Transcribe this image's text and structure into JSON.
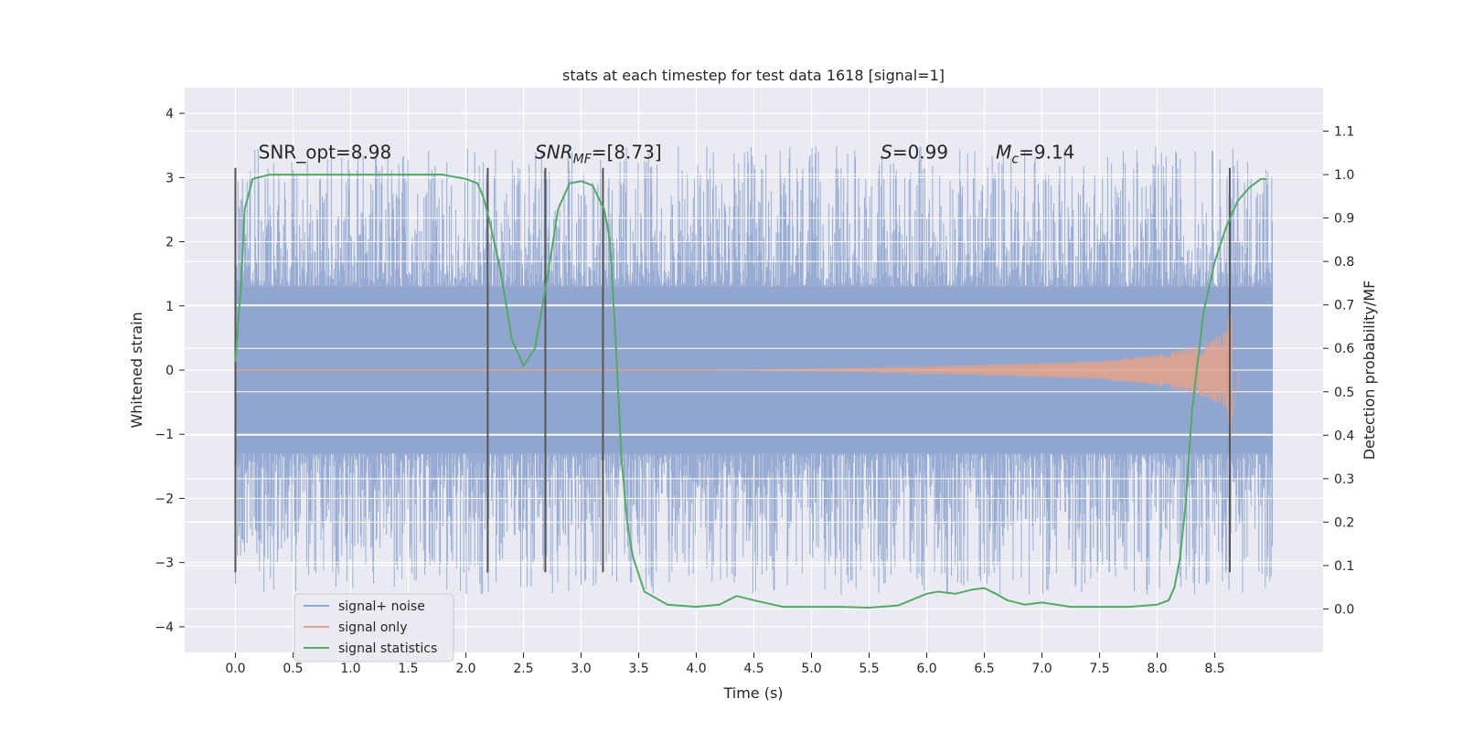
{
  "chart_data": {
    "type": "line",
    "title": "stats at each timestep for test data 1618 [signal=1]",
    "xlabel": "Time (s)",
    "ylabel": "Whitened strain",
    "y2label": "Detection probability/MF",
    "xlim": [
      -0.44,
      9.44
    ],
    "ylim": [
      -4.4,
      4.4
    ],
    "y2lim": [
      -0.1,
      1.2
    ],
    "xticks": [
      0.0,
      0.5,
      1.0,
      1.5,
      2.0,
      2.5,
      3.0,
      3.5,
      4.0,
      4.5,
      5.0,
      5.5,
      6.0,
      6.5,
      7.0,
      7.5,
      8.0,
      8.5
    ],
    "xtick_labels": [
      "0.0",
      "0.5",
      "1.0",
      "1.5",
      "2.0",
      "2.5",
      "3.0",
      "3.5",
      "4.0",
      "4.5",
      "5.0",
      "5.5",
      "6.0",
      "6.5",
      "7.0",
      "7.5",
      "8.0",
      "8.5"
    ],
    "yticks": [
      -4,
      -3,
      -2,
      -1,
      0,
      1,
      2,
      3,
      4
    ],
    "ytick_labels": [
      "−4",
      "−3",
      "−2",
      "−1",
      "0",
      "1",
      "2",
      "3",
      "4"
    ],
    "y2ticks": [
      0.0,
      0.1,
      0.2,
      0.3,
      0.4,
      0.5,
      0.6,
      0.7,
      0.8,
      0.9,
      1.0,
      1.1
    ],
    "y2tick_labels": [
      "0.0",
      "0.1",
      "0.2",
      "0.3",
      "0.4",
      "0.5",
      "0.6",
      "0.7",
      "0.8",
      "0.9",
      "1.0",
      "1.1"
    ],
    "grid": true,
    "vertical_markers": [
      0.0,
      2.19,
      2.69,
      3.19,
      8.63
    ],
    "vertical_marker_range": [
      -3.15,
      3.15
    ],
    "annotations": [
      {
        "name": "snr-opt",
        "main": "SNR_opt=8.98",
        "sub": "",
        "rest": "",
        "x": 0.2,
        "y": 3.3
      },
      {
        "name": "snr-mf",
        "main": "SNR",
        "sub": "MF",
        "rest": "=[8.73]",
        "x": 2.6,
        "y": 3.3,
        "italic": true
      },
      {
        "name": "s-value",
        "main": "S",
        "sub": "",
        "rest": "=0.99",
        "x": 5.6,
        "y": 3.3,
        "italic": true
      },
      {
        "name": "chirp-mass",
        "main": "M",
        "sub": "c",
        "rest": "=9.14",
        "x": 6.6,
        "y": 3.3,
        "italic": true
      }
    ],
    "series": [
      {
        "name": "signal+ noise",
        "color": "#8fa5cf",
        "axis": "left",
        "kind": "noise",
        "t_range": [
          0.0,
          9.0
        ],
        "core_amplitude": 1.3,
        "peak_amplitude_range": [
          -4.0,
          4.0
        ]
      },
      {
        "name": "signal only",
        "color": "#e6a28a",
        "axis": "left",
        "kind": "chirp",
        "t_range": [
          4.2,
          8.72
        ],
        "merger_time": 8.65,
        "amplitude_at": [
          [
            4.2,
            0.0
          ],
          [
            5.5,
            0.03
          ],
          [
            6.5,
            0.08
          ],
          [
            7.5,
            0.14
          ],
          [
            8.0,
            0.24
          ],
          [
            8.4,
            0.4
          ],
          [
            8.6,
            0.6
          ],
          [
            8.65,
            1.2
          ],
          [
            8.72,
            0.0
          ]
        ]
      },
      {
        "name": "signal statistics",
        "color": "#55a868",
        "axis": "right",
        "kind": "line",
        "x": [
          0.0,
          0.05,
          0.08,
          0.15,
          0.3,
          0.5,
          1.0,
          1.5,
          1.8,
          2.0,
          2.1,
          2.15,
          2.2,
          2.3,
          2.4,
          2.5,
          2.6,
          2.7,
          2.8,
          2.9,
          3.0,
          3.1,
          3.2,
          3.25,
          3.3,
          3.35,
          3.4,
          3.45,
          3.55,
          3.75,
          4.0,
          4.2,
          4.35,
          4.5,
          4.75,
          5.0,
          5.25,
          5.5,
          5.75,
          6.0,
          6.1,
          6.25,
          6.4,
          6.5,
          6.6,
          6.7,
          6.85,
          7.0,
          7.25,
          7.5,
          7.75,
          8.0,
          8.1,
          8.15,
          8.2,
          8.25,
          8.3,
          8.4,
          8.5,
          8.6,
          8.7,
          8.8,
          8.9,
          8.95
        ],
        "values": [
          0.57,
          0.75,
          0.92,
          0.99,
          1.0,
          1.0,
          1.0,
          1.0,
          1.0,
          0.99,
          0.98,
          0.95,
          0.9,
          0.78,
          0.62,
          0.56,
          0.6,
          0.75,
          0.92,
          0.98,
          0.985,
          0.975,
          0.92,
          0.85,
          0.62,
          0.35,
          0.2,
          0.12,
          0.04,
          0.01,
          0.005,
          0.01,
          0.03,
          0.02,
          0.005,
          0.005,
          0.005,
          0.003,
          0.008,
          0.035,
          0.04,
          0.035,
          0.045,
          0.048,
          0.035,
          0.02,
          0.01,
          0.015,
          0.005,
          0.005,
          0.005,
          0.01,
          0.02,
          0.05,
          0.12,
          0.25,
          0.45,
          0.68,
          0.8,
          0.88,
          0.94,
          0.97,
          0.99,
          0.99
        ]
      }
    ],
    "legend": {
      "position": "lower-left",
      "entries": [
        "signal+ noise",
        "signal only",
        "signal statistics"
      ]
    }
  }
}
